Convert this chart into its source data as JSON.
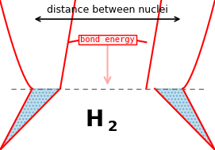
{
  "bg_color": "#ffffff",
  "curve_color": "#ff0000",
  "hatch_color": "#add8e6",
  "dashed_line_color": "#666666",
  "arrow_color": "#000000",
  "bond_arrow_color": "#ffaaaa",
  "bond_energy_color": "#ff0000",
  "bond_energy_bg": "#fff0f0",
  "title_color": "#000000",
  "bond_energy_label": "bond energy",
  "distance_label": "distance between nuclei",
  "molecule_label": "H",
  "subscript": "2",
  "font_size_distance": 9,
  "font_size_bond": 7.5,
  "font_size_molecule": 20,
  "font_size_subscript": 13
}
